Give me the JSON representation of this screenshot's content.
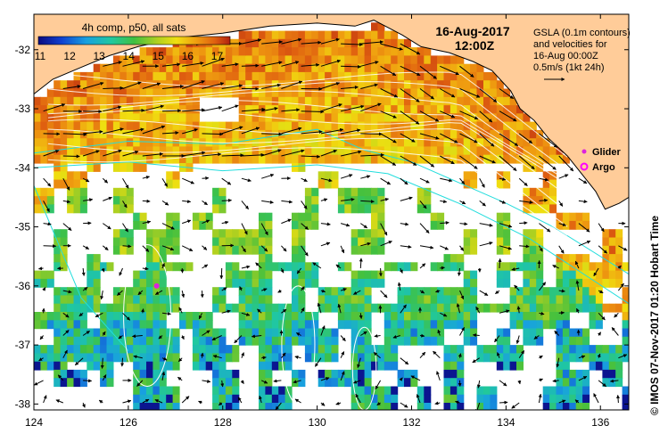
{
  "chart_data": {
    "type": "heatmap",
    "title": "16-Aug-2017",
    "subtitle": "12:00Z",
    "colorbar": {
      "label": "4h comp, p50, all sats",
      "ticks": [
        "11",
        "12",
        "13",
        "14",
        "15",
        "16",
        "17"
      ],
      "range": [
        11,
        17.5
      ]
    },
    "x_ticks": [
      "124",
      "126",
      "128",
      "130",
      "132",
      "134",
      "136"
    ],
    "y_ticks": [
      "-32",
      "-33",
      "-34",
      "-35",
      "-36",
      "-37",
      "-38"
    ],
    "xlim": [
      124,
      136.6
    ],
    "ylim": [
      -38.1,
      -31.4
    ],
    "gsla_note": [
      "GSLA (0.1m contours)",
      "and velocities for",
      "16-Aug 00:00Z",
      "0.5m/s (1kt 24h)"
    ],
    "legend": [
      {
        "label": "Glider",
        "color": "#dd22dd"
      },
      {
        "label": "Argo",
        "color": "#ff00ff"
      }
    ],
    "glider_position": [
      126.6,
      -36.0
    ],
    "credit": "© IMOS 07-Nov-2017 01:20 Hobart Time",
    "colors": {
      "land": "#ffcc99",
      "bathymetry": "#22dddd",
      "contour": "#ffffff"
    }
  }
}
